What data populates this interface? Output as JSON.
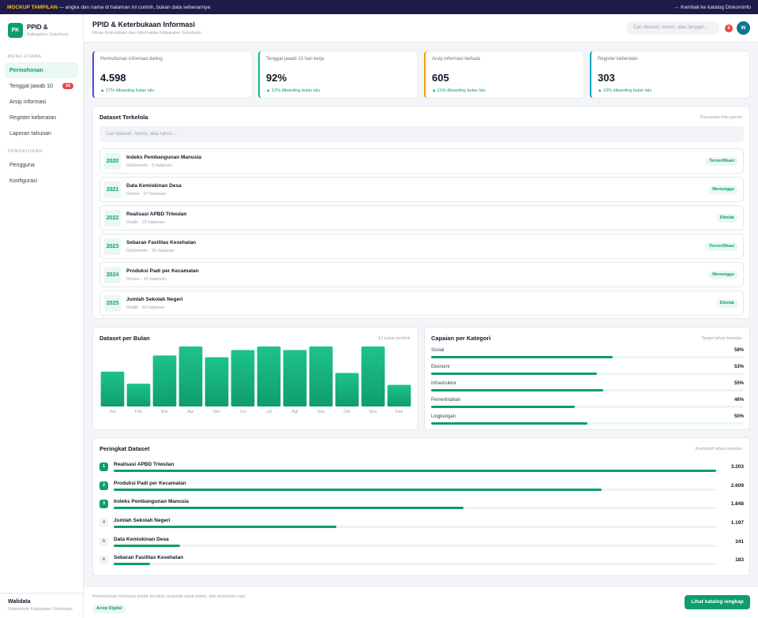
{
  "banner": {
    "tag": "MOCKUP TAMPILAN",
    "text": " — angka dan nama di halaman ini contoh, bukan data sebenarnya",
    "back_link": "← Kembali ke katalog Diskominfo"
  },
  "brand": {
    "logo": "PK",
    "name": "PPID &",
    "sub": "Kabupaten Sukoharjo"
  },
  "sidebar": {
    "section_main": "MENU UTAMA",
    "items": [
      {
        "label": "Permohonan",
        "active": true
      },
      {
        "label": "Tenggat jawab 10",
        "badge": "18"
      },
      {
        "label": "Arsip informasi"
      },
      {
        "label": "Register keberatan"
      },
      {
        "label": "Laporan tahunan"
      }
    ],
    "section_settings": "PENGATURAN",
    "settings_items": [
      {
        "label": "Pengguna"
      },
      {
        "label": "Konfigurasi"
      }
    ],
    "footer": {
      "user": "Walidata",
      "org": "Diskominfo Kabupaten Sukoharjo"
    }
  },
  "header": {
    "title": "PPID & Keterbukaan Informasi",
    "subtitle": "Dinas Komunikasi dan Informatika Kabupaten Sukoharjo",
    "search_placeholder": "Cari dataset, nomor, atau tanggal...",
    "notif_count": "6",
    "avatar": "W"
  },
  "kpis": [
    {
      "label": "Permohonan informasi daring",
      "value": "4.598",
      "delta": "▲ 17% dibanding bulan lalu",
      "accent": "#4f46e5"
    },
    {
      "label": "Tenggat jawab 10 hari kerja",
      "value": "92%",
      "delta": "▲ 12% dibanding bulan lalu",
      "accent": "#10b981"
    },
    {
      "label": "Arsip informasi berkala",
      "value": "605",
      "delta": "▲ 11% dibanding bulan lalu",
      "accent": "#f59e0b"
    },
    {
      "label": "Register keberatan",
      "value": "303",
      "delta": "▲ 10% dibanding bulan lalu",
      "accent": "#0ea5b7"
    }
  ],
  "datasets": {
    "title": "Dataset Terkelola",
    "hint": "Pencarian teks penuh",
    "search_placeholder": "Cari dataset, nomor, atau tahun...",
    "rows": [
      {
        "year": "2020",
        "name": "Indeks Pembangunan Manusia",
        "meta": "Diskominfo · 5 halaman",
        "status": "Terverifikasi"
      },
      {
        "year": "2021",
        "name": "Data Kemiskinan Desa",
        "meta": "Dinkes · 27 halaman",
        "status": "Menunggu"
      },
      {
        "year": "2022",
        "name": "Realisasi APBD Triwulan",
        "meta": "Disdik · 22 halaman",
        "status": "Ditolak"
      },
      {
        "year": "2023",
        "name": "Sebaran Fasilitas Kesehatan",
        "meta": "Diskominfo · 31 halaman",
        "status": "Terverifikasi"
      },
      {
        "year": "2024",
        "name": "Produksi Padi per Kecamatan",
        "meta": "Dinkes · 10 halaman",
        "status": "Menunggu"
      },
      {
        "year": "2025",
        "name": "Jumlah Sekolah Negeri",
        "meta": "Disdik · 10 halaman",
        "status": "Ditolak"
      }
    ]
  },
  "bar_card": {
    "title": "Dataset per Bulan",
    "hint": "12 bulan terakhir"
  },
  "chart_data": {
    "type": "bar",
    "categories": [
      "Jan",
      "Feb",
      "Mar",
      "Apr",
      "Mei",
      "Jun",
      "Jul",
      "Agt",
      "Sep",
      "Okt",
      "Nov",
      "Des"
    ],
    "values": [
      58,
      38,
      85,
      100,
      82,
      94,
      100,
      94,
      100,
      56,
      100,
      36
    ],
    "ylim": [
      0,
      100
    ],
    "grid": false,
    "color": "#0f9d6b"
  },
  "categories_card": {
    "title": "Capaian per Kategori",
    "hint": "Target tahun berjalan",
    "rows": [
      {
        "label": "Sosial",
        "value": "58%",
        "pct": 58
      },
      {
        "label": "Ekonomi",
        "value": "53%",
        "pct": 53
      },
      {
        "label": "Infrastruktur",
        "value": "55%",
        "pct": 55
      },
      {
        "label": "Pemerintahan",
        "value": "46%",
        "pct": 46
      },
      {
        "label": "Lingkungan",
        "value": "50%",
        "pct": 50
      }
    ]
  },
  "ranking": {
    "title": "Peringkat Dataset",
    "hint": "Kumulatif tahun berjalan",
    "rows": [
      {
        "rank": "1",
        "name": "Realisasi APBD Triwulan",
        "value": "3.203",
        "pct": 100
      },
      {
        "rank": "2",
        "name": "Produksi Padi per Kecamatan",
        "value": "2.609",
        "pct": 81
      },
      {
        "rank": "3",
        "name": "Indeks Pembangunan Manusia",
        "value": "1.848",
        "pct": 58
      },
      {
        "rank": "4",
        "name": "Jumlah Sekolah Negeri",
        "value": "1.197",
        "pct": 37
      },
      {
        "rank": "5",
        "name": "Data Kemiskinan Desa",
        "value": "341",
        "pct": 11
      },
      {
        "rank": "6",
        "name": "Sebaran Fasilitas Kesehatan",
        "value": "183",
        "pct": 6
      }
    ]
  },
  "footer": {
    "text": "Permohonan informasi publik tercatat, terjawab tepat waktu, dan tersimpan rapi.",
    "badge": "Arsip Digital",
    "button": "Lihat katalog lengkap"
  }
}
